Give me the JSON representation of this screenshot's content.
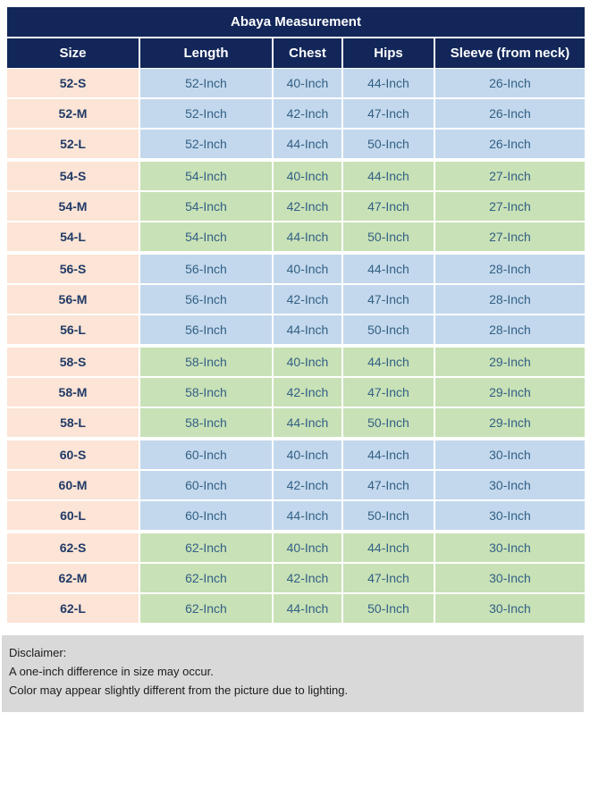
{
  "chart_data": {
    "type": "table",
    "title": "Abaya Measurement",
    "columns": [
      "Size",
      "Length",
      "Chest",
      "Hips",
      "Sleeve (from neck)"
    ],
    "group_size": 3,
    "group_tints": [
      "blue",
      "green"
    ],
    "rows": [
      [
        "52-S",
        "52-Inch",
        "40-Inch",
        "44-Inch",
        "26-Inch"
      ],
      [
        "52-M",
        "52-Inch",
        "42-Inch",
        "47-Inch",
        "26-Inch"
      ],
      [
        "52-L",
        "52-Inch",
        "44-Inch",
        "50-Inch",
        "26-Inch"
      ],
      [
        "54-S",
        "54-Inch",
        "40-Inch",
        "44-Inch",
        "27-Inch"
      ],
      [
        "54-M",
        "54-Inch",
        "42-Inch",
        "47-Inch",
        "27-Inch"
      ],
      [
        "54-L",
        "54-Inch",
        "44-Inch",
        "50-Inch",
        "27-Inch"
      ],
      [
        "56-S",
        "56-Inch",
        "40-Inch",
        "44-Inch",
        "28-Inch"
      ],
      [
        "56-M",
        "56-Inch",
        "42-Inch",
        "47-Inch",
        "28-Inch"
      ],
      [
        "56-L",
        "56-Inch",
        "44-Inch",
        "50-Inch",
        "28-Inch"
      ],
      [
        "58-S",
        "58-Inch",
        "40-Inch",
        "44-Inch",
        "29-Inch"
      ],
      [
        "58-M",
        "58-Inch",
        "42-Inch",
        "47-Inch",
        "29-Inch"
      ],
      [
        "58-L",
        "58-Inch",
        "44-Inch",
        "50-Inch",
        "29-Inch"
      ],
      [
        "60-S",
        "60-Inch",
        "40-Inch",
        "44-Inch",
        "30-Inch"
      ],
      [
        "60-M",
        "60-Inch",
        "42-Inch",
        "47-Inch",
        "30-Inch"
      ],
      [
        "60-L",
        "60-Inch",
        "44-Inch",
        "50-Inch",
        "30-Inch"
      ],
      [
        "62-S",
        "62-Inch",
        "40-Inch",
        "44-Inch",
        "30-Inch"
      ],
      [
        "62-M",
        "62-Inch",
        "42-Inch",
        "47-Inch",
        "30-Inch"
      ],
      [
        "62-L",
        "62-Inch",
        "44-Inch",
        "50-Inch",
        "30-Inch"
      ]
    ]
  },
  "disclaimer": {
    "heading": "Disclaimer:",
    "lines": [
      "A one-inch difference in size may occur.",
      "Color may appear slightly different from the picture due to lighting."
    ]
  },
  "colors": {
    "navy": "#122659",
    "peach": "#fce4d6",
    "blue": "#c3d8ec",
    "green": "#c8e1b6",
    "gray": "#d9d9d9",
    "data_text": "#336086",
    "size_text": "#203a66"
  }
}
